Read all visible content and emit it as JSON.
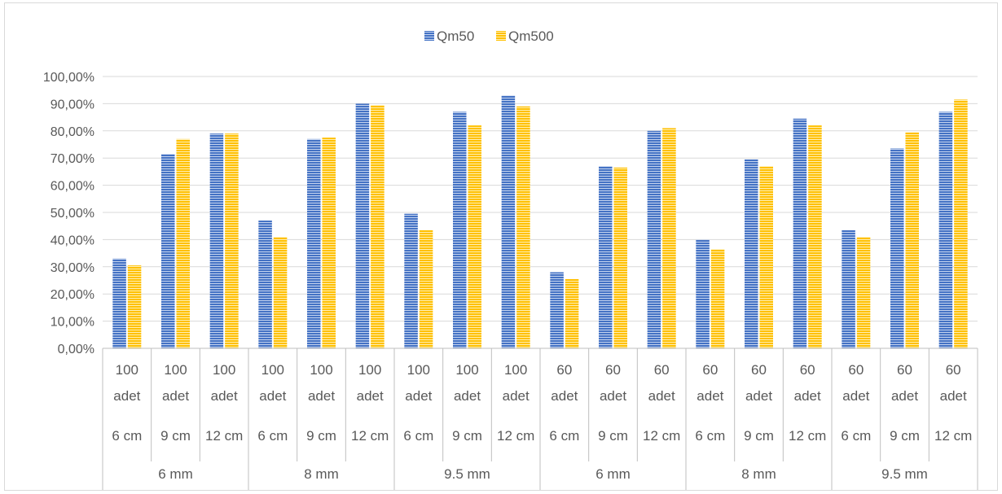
{
  "chart_data": {
    "type": "bar",
    "legend_position": "top",
    "grid": true,
    "ylim": [
      0,
      100
    ],
    "y_tick_labels": [
      "0,00%",
      "10,00%",
      "20,00%",
      "30,00%",
      "40,00%",
      "50,00%",
      "60,00%",
      "70,00%",
      "80,00%",
      "90,00%",
      "100,00%"
    ],
    "categories": [
      {
        "count": "100",
        "unit": "adet",
        "length": "6 cm",
        "diameter": "6 mm"
      },
      {
        "count": "100",
        "unit": "adet",
        "length": "9 cm",
        "diameter": "6 mm"
      },
      {
        "count": "100",
        "unit": "adet",
        "length": "12 cm",
        "diameter": "6 mm"
      },
      {
        "count": "100",
        "unit": "adet",
        "length": "6 cm",
        "diameter": "8 mm"
      },
      {
        "count": "100",
        "unit": "adet",
        "length": "9 cm",
        "diameter": "8 mm"
      },
      {
        "count": "100",
        "unit": "adet",
        "length": "12 cm",
        "diameter": "8 mm"
      },
      {
        "count": "100",
        "unit": "adet",
        "length": "6 cm",
        "diameter": "9.5 mm"
      },
      {
        "count": "100",
        "unit": "adet",
        "length": "9 cm",
        "diameter": "9.5 mm"
      },
      {
        "count": "100",
        "unit": "adet",
        "length": "12 cm",
        "diameter": "9.5 mm"
      },
      {
        "count": "60",
        "unit": "adet",
        "length": "6 cm",
        "diameter": "6 mm"
      },
      {
        "count": "60",
        "unit": "adet",
        "length": "9 cm",
        "diameter": "6 mm"
      },
      {
        "count": "60",
        "unit": "adet",
        "length": "12 cm",
        "diameter": "6 mm"
      },
      {
        "count": "60",
        "unit": "adet",
        "length": "6 cm",
        "diameter": "8 mm"
      },
      {
        "count": "60",
        "unit": "adet",
        "length": "9 cm",
        "diameter": "8 mm"
      },
      {
        "count": "60",
        "unit": "adet",
        "length": "12 cm",
        "diameter": "8 mm"
      },
      {
        "count": "60",
        "unit": "adet",
        "length": "6 cm",
        "diameter": "9.5 mm"
      },
      {
        "count": "60",
        "unit": "adet",
        "length": "9 cm",
        "diameter": "9.5 mm"
      },
      {
        "count": "60",
        "unit": "adet",
        "length": "12 cm",
        "diameter": "9.5 mm"
      }
    ],
    "groups": [
      "6 mm",
      "8 mm",
      "9.5 mm",
      "6 mm",
      "8 mm",
      "9.5 mm"
    ],
    "series": [
      {
        "name": "Qm50",
        "color": "#4472c4",
        "values": [
          33,
          71.5,
          79,
          47,
          77,
          90,
          49.5,
          87,
          93,
          28,
          67,
          80,
          40,
          69.5,
          84.5,
          43.5,
          73.5,
          87
        ]
      },
      {
        "name": "Qm500",
        "color": "#ffc000",
        "values": [
          30.5,
          77,
          79,
          41,
          77.5,
          89.5,
          43.5,
          82,
          89,
          25.5,
          66.5,
          81,
          36.5,
          67,
          82,
          41,
          79.5,
          91.5
        ]
      }
    ]
  }
}
